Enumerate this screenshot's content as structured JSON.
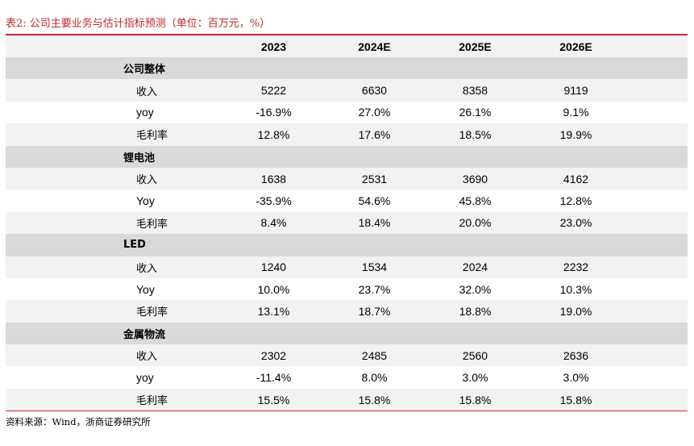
{
  "title": "表2:  公司主要业务与估计指标预测（单位：百万元，%）",
  "header": {
    "col0": "",
    "years": [
      "2023",
      "2024E",
      "2025E",
      "2026E"
    ]
  },
  "sections": [
    {
      "name": "公司整体",
      "rows": [
        {
          "label": "收入",
          "values": [
            "5222",
            "6630",
            "8358",
            "9119"
          ]
        },
        {
          "label": "yoy",
          "values": [
            "-16.9%",
            "27.0%",
            "26.1%",
            "9.1%"
          ]
        },
        {
          "label": "毛利率",
          "values": [
            "12.8%",
            "17.6%",
            "18.5%",
            "19.9%"
          ]
        }
      ]
    },
    {
      "name": "锂电池",
      "rows": [
        {
          "label": "收入",
          "values": [
            "1638",
            "2531",
            "3690",
            "4162"
          ]
        },
        {
          "label": "Yoy",
          "values": [
            "-35.9%",
            "54.6%",
            "45.8%",
            "12.8%"
          ]
        },
        {
          "label": "毛利率",
          "values": [
            "8.4%",
            "18.4%",
            "20.0%",
            "23.0%"
          ]
        }
      ]
    },
    {
      "name": "LED",
      "rows": [
        {
          "label": "收入",
          "values": [
            "1240",
            "1534",
            "2024",
            "2232"
          ]
        },
        {
          "label": "Yoy",
          "values": [
            "10.0%",
            "23.7%",
            "32.0%",
            "10.3%"
          ]
        },
        {
          "label": "毛利率",
          "values": [
            "13.1%",
            "18.7%",
            "18.8%",
            "19.0%"
          ]
        }
      ]
    },
    {
      "name": "金属物流",
      "rows": [
        {
          "label": "收入",
          "values": [
            "2302",
            "2485",
            "2560",
            "2636"
          ]
        },
        {
          "label": "yoy",
          "values": [
            "-11.4%",
            "8.0%",
            "3.0%",
            "3.0%"
          ]
        },
        {
          "label": "毛利率",
          "values": [
            "15.5%",
            "15.8%",
            "15.8%",
            "15.8%"
          ]
        }
      ]
    }
  ],
  "source": "资料来源：Wind，浙商证券研究所",
  "colors": {
    "accent": "#c0282d",
    "header_bg": "#f2f2f2",
    "section_bg": "#d9d9d9"
  }
}
